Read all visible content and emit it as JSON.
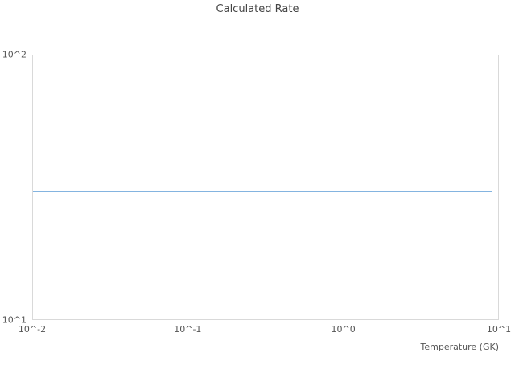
{
  "colors": {
    "line": "#5b9bd5",
    "plot_border": "#d9d9d9",
    "tick_text": "#555555",
    "title_text": "#454545",
    "background": "#ffffff"
  },
  "chart_data": {
    "type": "line",
    "title": "Calculated Rate",
    "xlabel": "Temperature (GK)",
    "ylabel": "",
    "xscale": "log",
    "yscale": "log",
    "xlim": [
      0.01,
      10
    ],
    "ylim": [
      10,
      100
    ],
    "grid": false,
    "legend_position": "none",
    "x_ticks": [
      {
        "value": 0.01,
        "label": "10^-2"
      },
      {
        "value": 0.1,
        "label": "10^-1"
      },
      {
        "value": 1,
        "label": "10^0"
      },
      {
        "value": 10,
        "label": "10^1"
      }
    ],
    "y_ticks": [
      {
        "value": 10,
        "label": "10^1"
      },
      {
        "value": 100,
        "label": "10^2"
      }
    ],
    "series": [
      {
        "name": "calculated-rate",
        "color": "#5b9bd5",
        "x": [
          0.01,
          9.1
        ],
        "y": [
          30.5,
          30.5
        ]
      }
    ]
  }
}
